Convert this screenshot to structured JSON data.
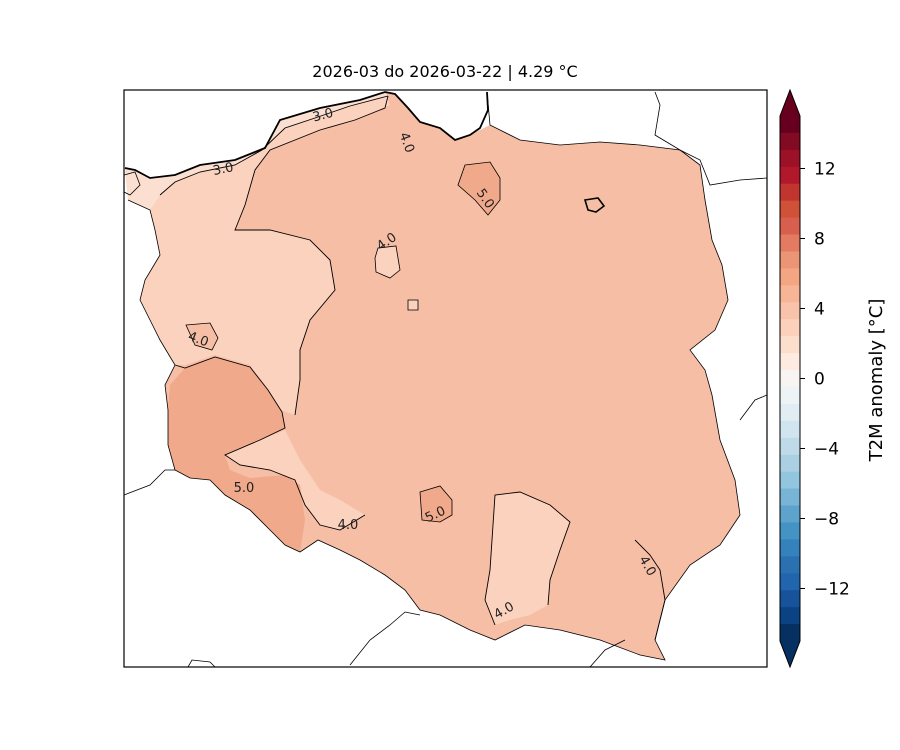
{
  "map": {
    "title": "2026-03 do 2026-03-22 | 4.29 °C",
    "region": "Poland",
    "variable": "T2M anomaly",
    "projection": "lat-lon",
    "contour_levels": [
      3.0,
      4.0,
      5.0
    ],
    "contour_labels": [
      "3.0",
      "3.0",
      "4.0",
      "4.0",
      "4.0",
      "4.0",
      "4.0",
      "4.0",
      "5.0",
      "5.0",
      "5.0"
    ],
    "fill_colors": {
      "anomaly_2_to_3": "#fbe0d2",
      "anomaly_3_to_4": "#fbd2bd",
      "anomaly_4_to_5": "#f7bea6",
      "anomaly_5_to_6": "#f0a98a",
      "coastline": "#000000",
      "borders": "#000000"
    }
  },
  "colorbar": {
    "label": "T2M anomaly [°C]",
    "ticks": [
      "12",
      "8",
      "4",
      "0",
      "−4",
      "−8",
      "−12"
    ],
    "range": [
      -15,
      15
    ],
    "extend": "both",
    "colors_top_to_bottom": [
      "#67001f",
      "#820a22",
      "#9c1127",
      "#b2182b",
      "#c1352f",
      "#cf5137",
      "#d6604d",
      "#e27b61",
      "#ec9576",
      "#f4a582",
      "#f6b597",
      "#f8c3aa",
      "#fbd1bc",
      "#fcdecd",
      "#fdeae0",
      "#f7f4f2",
      "#eef3f6",
      "#e1edf3",
      "#d1e5f0",
      "#bfdbea",
      "#abd0e4",
      "#92c5de",
      "#77b4d6",
      "#5ea3cc",
      "#4393c3",
      "#3581bb",
      "#2b70b0",
      "#2166ac",
      "#16539a",
      "#0b4283",
      "#053061"
    ]
  }
}
